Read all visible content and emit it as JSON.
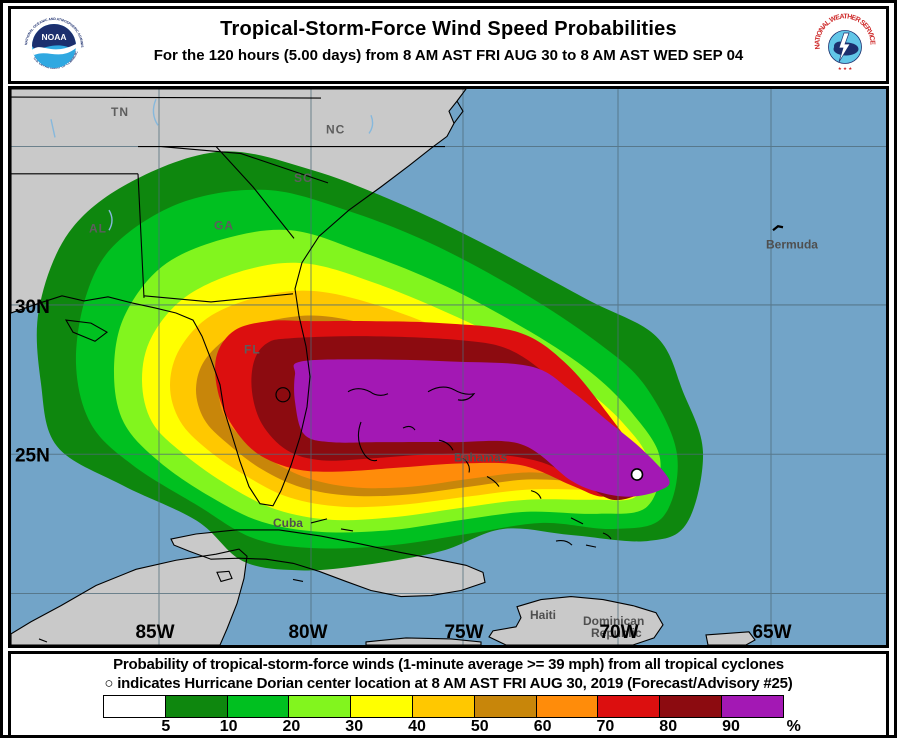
{
  "header": {
    "title": "Tropical-Storm-Force Wind Speed Probabilities",
    "subtitle": "For the 120 hours (5.00 days) from 8 AM AST FRI AUG 30 to 8 AM AST WED SEP 04"
  },
  "noaa_logo": {
    "label": "NOAA",
    "ring_top": "NATIONAL OCEANIC AND ATMOSPHERIC ADMINISTRATION",
    "ring_bottom": "U.S. DEPARTMENT OF COMMERCE"
  },
  "nws_logo": {
    "ring_text": "NATIONAL WEATHER SERVICE",
    "stars": "★ ★ ★"
  },
  "map": {
    "state_labels": {
      "tn": "TN",
      "nc": "NC",
      "sc": "SC",
      "al": "AL",
      "ga": "GA",
      "fl": "FL"
    },
    "place_labels": {
      "bermuda": "Bermuda",
      "cuba": "Cuba",
      "haiti": "Haiti",
      "dominican": "Dominican",
      "republic": "Republic",
      "bahamas": "Bahamas"
    },
    "lat_labels": [
      "30N",
      "25N"
    ],
    "lon_labels": [
      "85W",
      "80W",
      "75W",
      "70W",
      "65W"
    ]
  },
  "footer": {
    "line1": "Probability of tropical-storm-force winds (1-minute average >= 39 mph) from all tropical cyclones",
    "line2_marker": "○",
    "line2": "indicates Hurricane Dorian center location at 8 AM AST FRI AUG 30, 2019 (Forecast/Advisory #25)"
  },
  "legend": {
    "tick_labels": [
      "5",
      "10",
      "20",
      "30",
      "40",
      "50",
      "60",
      "70",
      "80",
      "90",
      "%"
    ],
    "cell_colors": [
      "#FFFFFF",
      "#0E870E",
      "#00C020",
      "#82F51E",
      "#FFFF00",
      "#FFC800",
      "#C8860A",
      "#FF8C0A",
      "#DC0F0F",
      "#8C0B10",
      "#A318B4"
    ]
  },
  "probability_bands": [
    {
      "level": "5",
      "color": "#0E870E"
    },
    {
      "level": "10",
      "color": "#00C020"
    },
    {
      "level": "20",
      "color": "#82F51E"
    },
    {
      "level": "30",
      "color": "#FFFF00"
    },
    {
      "level": "40",
      "color": "#FFC800"
    },
    {
      "level": "50",
      "color": "#C8860A"
    },
    {
      "level": "60",
      "color": "#FF8C0A"
    },
    {
      "level": "70",
      "color": "#DC0F0F"
    },
    {
      "level": "80",
      "color": "#8C0B10"
    },
    {
      "level": "90",
      "color": "#A318B4"
    }
  ],
  "colors": {
    "water": "#72A4C8",
    "land": "#C9C9C9",
    "grid": "#4e6a78",
    "nws_red": "#CE2A2A",
    "noaa_navy": "#1C2F6E",
    "noaa_blue": "#2FA8E1"
  }
}
